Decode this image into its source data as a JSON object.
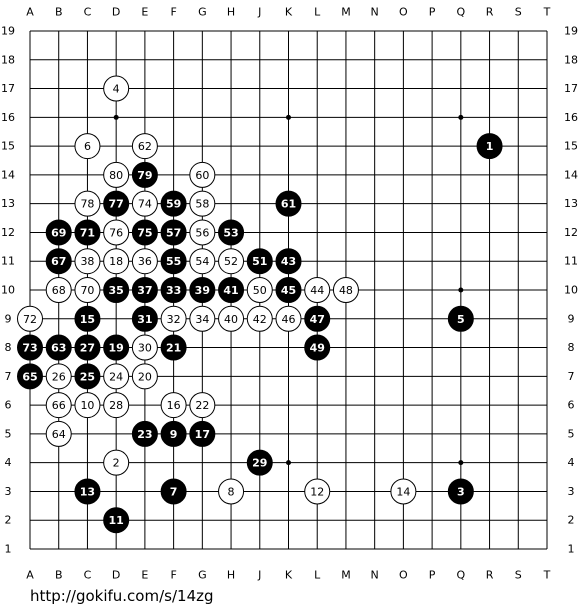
{
  "columns": [
    "A",
    "B",
    "C",
    "D",
    "E",
    "F",
    "G",
    "H",
    "J",
    "K",
    "L",
    "M",
    "N",
    "O",
    "P",
    "Q",
    "R",
    "S",
    "T"
  ],
  "rows": [
    1,
    2,
    3,
    4,
    5,
    6,
    7,
    8,
    9,
    10,
    11,
    12,
    13,
    14,
    15,
    16,
    17,
    18,
    19
  ],
  "stones": [
    {
      "move": 1,
      "color": "black",
      "col": "R",
      "row": 15
    },
    {
      "move": 2,
      "color": "white",
      "col": "D",
      "row": 4
    },
    {
      "move": 3,
      "color": "black",
      "col": "Q",
      "row": 3
    },
    {
      "move": 4,
      "color": "white",
      "col": "D",
      "row": 17
    },
    {
      "move": 5,
      "color": "black",
      "col": "Q",
      "row": 9
    },
    {
      "move": 6,
      "color": "white",
      "col": "C",
      "row": 15
    },
    {
      "move": 7,
      "color": "black",
      "col": "F",
      "row": 3
    },
    {
      "move": 8,
      "color": "white",
      "col": "H",
      "row": 3
    },
    {
      "move": 9,
      "color": "black",
      "col": "F",
      "row": 5
    },
    {
      "move": 10,
      "color": "white",
      "col": "C",
      "row": 6
    },
    {
      "move": 11,
      "color": "black",
      "col": "D",
      "row": 2
    },
    {
      "move": 12,
      "color": "white",
      "col": "L",
      "row": 3
    },
    {
      "move": 13,
      "color": "black",
      "col": "C",
      "row": 3
    },
    {
      "move": 14,
      "color": "white",
      "col": "O",
      "row": 3
    },
    {
      "move": 15,
      "color": "black",
      "col": "C",
      "row": 9
    },
    {
      "move": 16,
      "color": "white",
      "col": "F",
      "row": 6
    },
    {
      "move": 17,
      "color": "black",
      "col": "G",
      "row": 5
    },
    {
      "move": 18,
      "color": "white",
      "col": "D",
      "row": 11
    },
    {
      "move": 19,
      "color": "black",
      "col": "D",
      "row": 8
    },
    {
      "move": 20,
      "color": "white",
      "col": "E",
      "row": 7
    },
    {
      "move": 21,
      "color": "black",
      "col": "F",
      "row": 8
    },
    {
      "move": 22,
      "color": "white",
      "col": "G",
      "row": 6
    },
    {
      "move": 23,
      "color": "black",
      "col": "E",
      "row": 5
    },
    {
      "move": 24,
      "color": "white",
      "col": "D",
      "row": 7
    },
    {
      "move": 25,
      "color": "black",
      "col": "C",
      "row": 7
    },
    {
      "move": 26,
      "color": "white",
      "col": "B",
      "row": 7
    },
    {
      "move": 27,
      "color": "black",
      "col": "C",
      "row": 8
    },
    {
      "move": 28,
      "color": "white",
      "col": "D",
      "row": 6
    },
    {
      "move": 29,
      "color": "black",
      "col": "J",
      "row": 4
    },
    {
      "move": 30,
      "color": "white",
      "col": "E",
      "row": 8
    },
    {
      "move": 31,
      "color": "black",
      "col": "E",
      "row": 9
    },
    {
      "move": 32,
      "color": "white",
      "col": "F",
      "row": 9
    },
    {
      "move": 33,
      "color": "black",
      "col": "F",
      "row": 10
    },
    {
      "move": 34,
      "color": "white",
      "col": "G",
      "row": 9
    },
    {
      "move": 35,
      "color": "black",
      "col": "D",
      "row": 10
    },
    {
      "move": 36,
      "color": "white",
      "col": "E",
      "row": 11
    },
    {
      "move": 37,
      "color": "black",
      "col": "E",
      "row": 10
    },
    {
      "move": 38,
      "color": "white",
      "col": "C",
      "row": 11
    },
    {
      "move": 39,
      "color": "black",
      "col": "G",
      "row": 10
    },
    {
      "move": 40,
      "color": "white",
      "col": "H",
      "row": 9
    },
    {
      "move": 41,
      "color": "black",
      "col": "H",
      "row": 10
    },
    {
      "move": 42,
      "color": "white",
      "col": "J",
      "row": 9
    },
    {
      "move": 43,
      "color": "black",
      "col": "K",
      "row": 11
    },
    {
      "move": 44,
      "color": "white",
      "col": "L",
      "row": 10
    },
    {
      "move": 45,
      "color": "black",
      "col": "K",
      "row": 10
    },
    {
      "move": 46,
      "color": "white",
      "col": "K",
      "row": 9
    },
    {
      "move": 47,
      "color": "black",
      "col": "L",
      "row": 9
    },
    {
      "move": 48,
      "color": "white",
      "col": "M",
      "row": 10
    },
    {
      "move": 49,
      "color": "black",
      "col": "L",
      "row": 8
    },
    {
      "move": 50,
      "color": "white",
      "col": "J",
      "row": 10
    },
    {
      "move": 51,
      "color": "black",
      "col": "J",
      "row": 11
    },
    {
      "move": 52,
      "color": "white",
      "col": "H",
      "row": 11
    },
    {
      "move": 53,
      "color": "black",
      "col": "H",
      "row": 12
    },
    {
      "move": 54,
      "color": "white",
      "col": "G",
      "row": 11
    },
    {
      "move": 55,
      "color": "black",
      "col": "F",
      "row": 11
    },
    {
      "move": 56,
      "color": "white",
      "col": "G",
      "row": 12
    },
    {
      "move": 57,
      "color": "black",
      "col": "F",
      "row": 12
    },
    {
      "move": 58,
      "color": "white",
      "col": "G",
      "row": 13
    },
    {
      "move": 59,
      "color": "black",
      "col": "F",
      "row": 13
    },
    {
      "move": 60,
      "color": "white",
      "col": "G",
      "row": 14
    },
    {
      "move": 61,
      "color": "black",
      "col": "K",
      "row": 13
    },
    {
      "move": 62,
      "color": "white",
      "col": "E",
      "row": 15
    },
    {
      "move": 63,
      "color": "black",
      "col": "B",
      "row": 8
    },
    {
      "move": 64,
      "color": "white",
      "col": "B",
      "row": 5
    },
    {
      "move": 65,
      "color": "black",
      "col": "A",
      "row": 7
    },
    {
      "move": 66,
      "color": "white",
      "col": "B",
      "row": 6
    },
    {
      "move": 67,
      "color": "black",
      "col": "B",
      "row": 11
    },
    {
      "move": 68,
      "color": "white",
      "col": "B",
      "row": 10
    },
    {
      "move": 69,
      "color": "black",
      "col": "B",
      "row": 12
    },
    {
      "move": 70,
      "color": "white",
      "col": "C",
      "row": 10
    },
    {
      "move": 71,
      "color": "black",
      "col": "C",
      "row": 12
    },
    {
      "move": 72,
      "color": "white",
      "col": "A",
      "row": 9
    },
    {
      "move": 73,
      "color": "black",
      "col": "A",
      "row": 8
    },
    {
      "move": 74,
      "color": "white",
      "col": "E",
      "row": 13
    },
    {
      "move": 75,
      "color": "black",
      "col": "E",
      "row": 12
    },
    {
      "move": 76,
      "color": "white",
      "col": "D",
      "row": 12
    },
    {
      "move": 77,
      "color": "black",
      "col": "D",
      "row": 13
    },
    {
      "move": 78,
      "color": "white",
      "col": "C",
      "row": 13
    },
    {
      "move": 79,
      "color": "black",
      "col": "E",
      "row": 14
    },
    {
      "move": 80,
      "color": "white",
      "col": "D",
      "row": 14
    }
  ],
  "footer": "http://gokifu.com/s/14zg"
}
